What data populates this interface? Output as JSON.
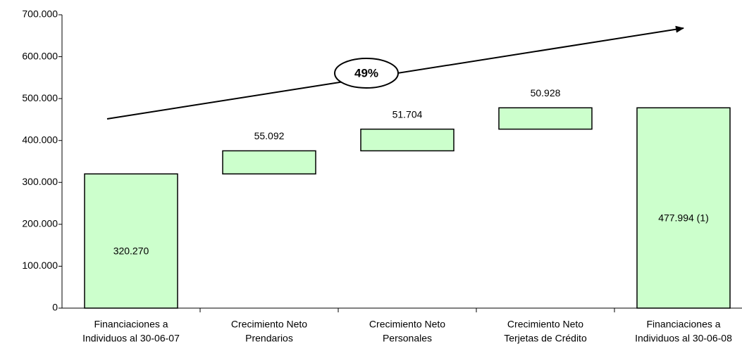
{
  "chart_data": {
    "type": "waterfall",
    "categories": [
      [
        "Financiaciones a",
        "Individuos al 30-06-07"
      ],
      [
        "Crecimiento Neto",
        "Prendarios"
      ],
      [
        "Crecimiento Neto",
        "Personales"
      ],
      [
        "Crecimiento Neto",
        "Terjetas de Crédito"
      ],
      [
        "Financiaciones a",
        "Individuos al 30-06-08"
      ]
    ],
    "measure": [
      "absolute",
      "relative",
      "relative",
      "relative",
      "absolute"
    ],
    "values": [
      320270,
      55092,
      51704,
      50928,
      477994
    ],
    "value_labels": [
      "320.270",
      "55.092",
      "51.704",
      "50.928",
      "477.994 (1)"
    ],
    "color": "#ccffcc",
    "ylim": [
      0,
      700000
    ],
    "yticks": [
      0,
      {
        "value": 100000,
        "label": "100.000"
      },
      {
        "value": 200000,
        "label": "200.000"
      },
      {
        "value": 300000,
        "label": "300.000"
      },
      {
        "value": 400000,
        "label": "400.000"
      },
      {
        "value": 500000,
        "label": "500.000"
      },
      {
        "value": 600000,
        "label": "600.000"
      },
      {
        "value": 700000,
        "label": "700.000"
      }
    ],
    "annotation": "49%"
  }
}
